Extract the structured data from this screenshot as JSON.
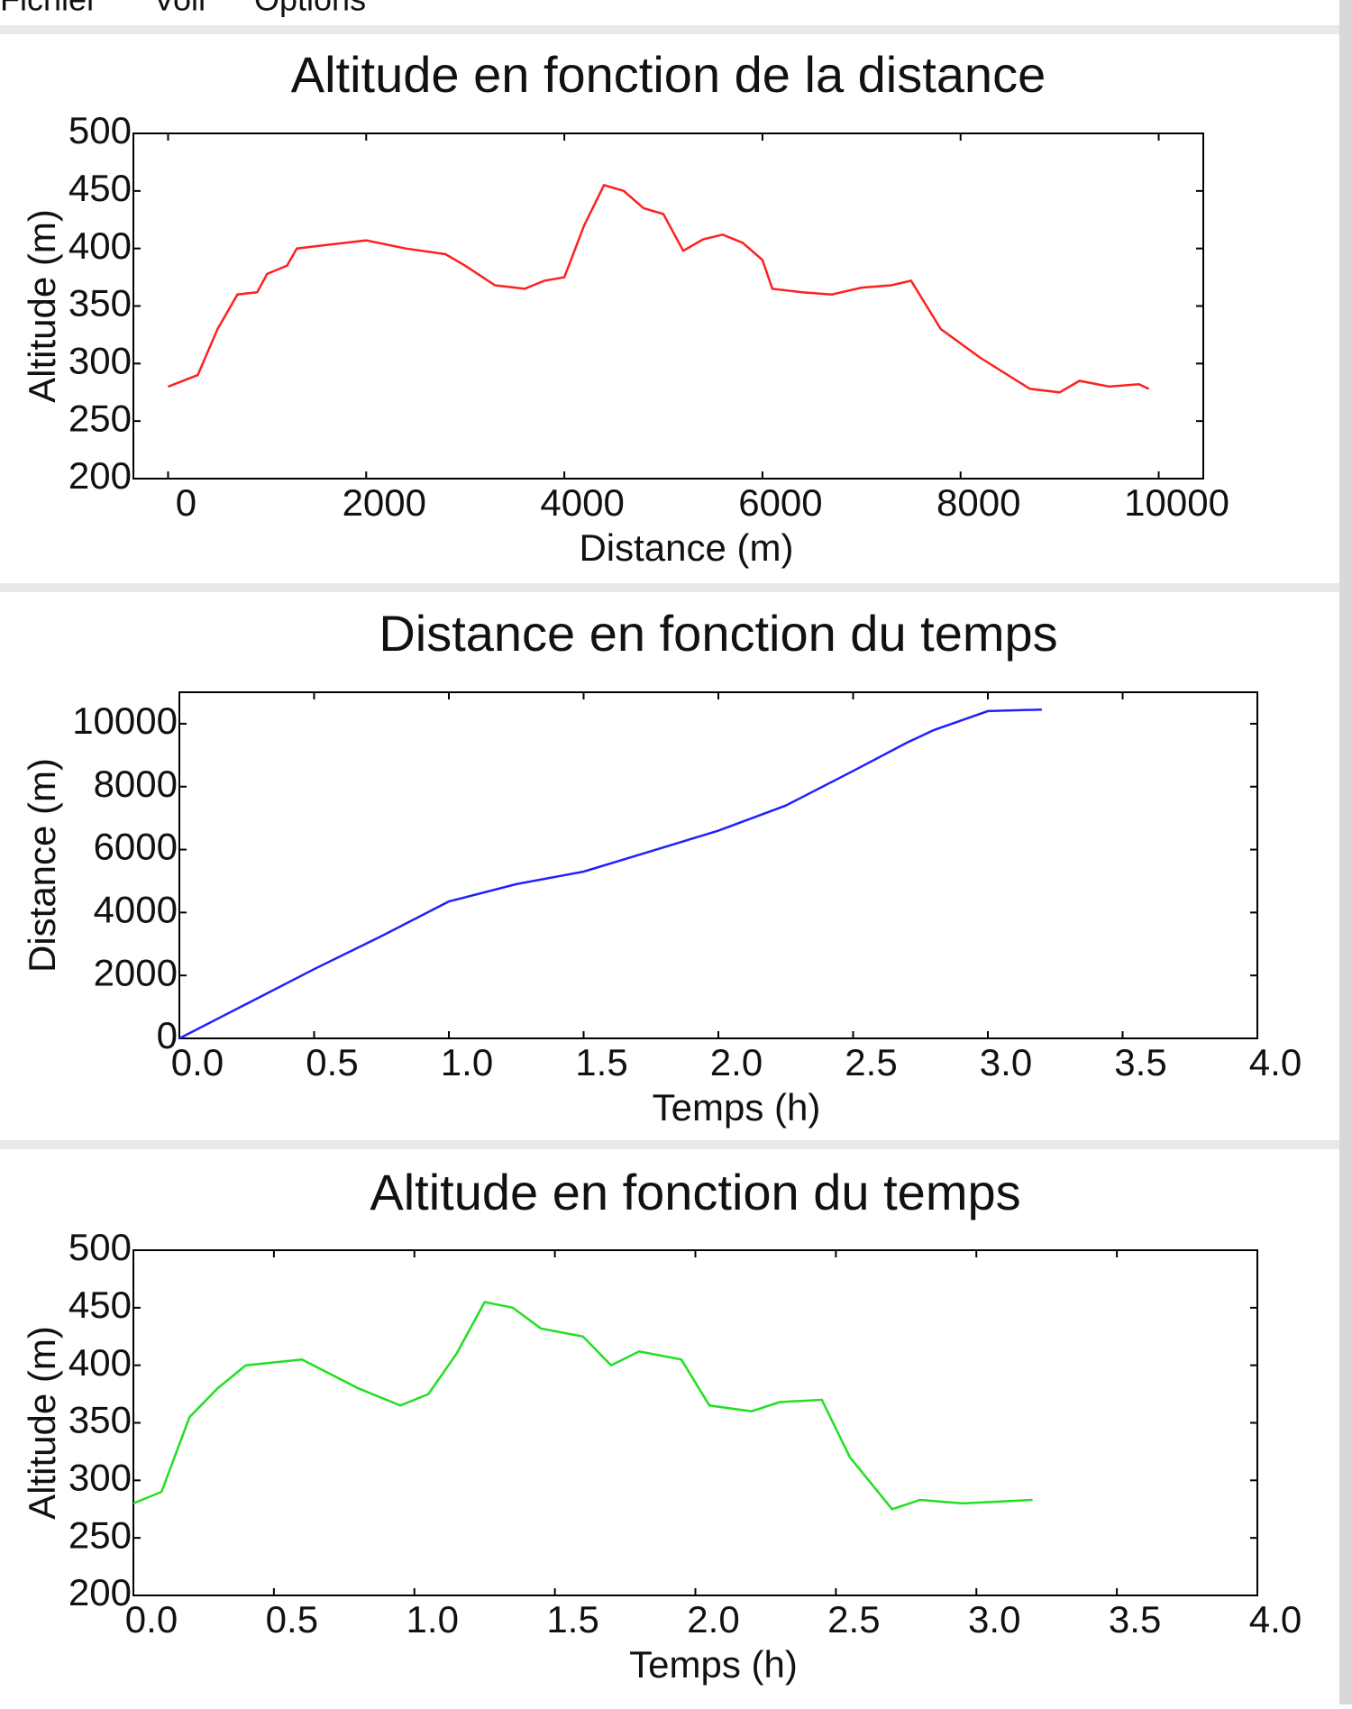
{
  "menu": [
    "Fichier",
    "Voir",
    "Options"
  ],
  "chart_data": [
    {
      "type": "line",
      "title": "Altitude en fonction de la distance",
      "x_label": "Distance (m)",
      "y_label": "Altitude (m)",
      "x": [
        0,
        300,
        500,
        700,
        900,
        1000,
        1200,
        1300,
        1600,
        2000,
        2400,
        2800,
        3000,
        3300,
        3600,
        3800,
        4000,
        4200,
        4400,
        4600,
        4800,
        5000,
        5200,
        5400,
        5600,
        5800,
        6000,
        6100,
        6400,
        6700,
        7000,
        7300,
        7500,
        7800,
        8200,
        8700,
        9000,
        9200,
        9500,
        9800,
        9900
      ],
      "series": [
        {
          "name": "Altitude",
          "color": "#ff2020",
          "values": [
            280,
            290,
            330,
            360,
            362,
            378,
            385,
            400,
            403,
            407,
            400,
            395,
            385,
            368,
            365,
            372,
            375,
            420,
            455,
            450,
            435,
            430,
            398,
            408,
            412,
            405,
            390,
            365,
            362,
            360,
            366,
            368,
            372,
            330,
            305,
            278,
            275,
            285,
            280,
            282,
            278
          ]
        }
      ],
      "xlim": [
        -350,
        10450
      ],
      "xticks": [
        0,
        2000,
        4000,
        6000,
        8000,
        10000
      ],
      "ylim": [
        200,
        500
      ],
      "yticks": [
        200,
        250,
        300,
        350,
        400,
        450,
        500
      ]
    },
    {
      "type": "line",
      "title": "Distance en fonction du temps",
      "x_label": "Temps (h)",
      "y_label": "Distance (m)",
      "x": [
        0,
        0.25,
        0.5,
        0.75,
        1,
        1.25,
        1.5,
        1.75,
        2,
        2.25,
        2.5,
        2.7,
        2.8,
        3.0,
        3.2
      ],
      "series": [
        {
          "name": "Distance",
          "color": "#2020ff",
          "values": [
            0,
            1100,
            2200,
            3250,
            4350,
            4900,
            5300,
            5950,
            6600,
            7400,
            8500,
            9400,
            9800,
            10400,
            10450
          ]
        }
      ],
      "xlim": [
        0,
        4
      ],
      "xticks": [
        {
          "value": 0,
          "label": "0.0"
        },
        0.5,
        {
          "value": 1,
          "label": "1.0"
        },
        1.5,
        {
          "value": 2,
          "label": "2.0"
        },
        2.5,
        {
          "value": 3,
          "label": "3.0"
        },
        3.5,
        {
          "value": 4,
          "label": "4.0"
        }
      ],
      "ylim": [
        0,
        11000
      ],
      "yticks": [
        0,
        2000,
        4000,
        6000,
        8000,
        10000
      ]
    },
    {
      "type": "line",
      "title": "Altitude en fonction du temps",
      "x_label": "Temps (h)",
      "y_label": "Altitude (m)",
      "x": [
        0,
        0.1,
        0.2,
        0.3,
        0.4,
        0.6,
        0.8,
        0.95,
        1.05,
        1.15,
        1.25,
        1.35,
        1.45,
        1.6,
        1.7,
        1.8,
        1.95,
        2.05,
        2.2,
        2.3,
        2.45,
        2.55,
        2.7,
        2.8,
        2.95,
        3.2
      ],
      "series": [
        {
          "name": "Altitude",
          "color": "#20e020",
          "values": [
            280,
            290,
            355,
            380,
            400,
            405,
            380,
            365,
            375,
            410,
            455,
            450,
            432,
            425,
            400,
            412,
            405,
            365,
            360,
            368,
            370,
            320,
            275,
            283,
            280,
            283
          ]
        }
      ],
      "xlim": [
        0,
        4
      ],
      "xticks": [
        {
          "value": 0,
          "label": "0.0"
        },
        0.5,
        {
          "value": 1,
          "label": "1.0"
        },
        1.5,
        {
          "value": 2,
          "label": "2.0"
        },
        2.5,
        {
          "value": 3,
          "label": "3.0"
        },
        3.5,
        {
          "value": 4,
          "label": "4.0"
        }
      ],
      "ylim": [
        200,
        500
      ],
      "yticks": [
        200,
        250,
        300,
        350,
        400,
        450,
        500
      ]
    }
  ]
}
